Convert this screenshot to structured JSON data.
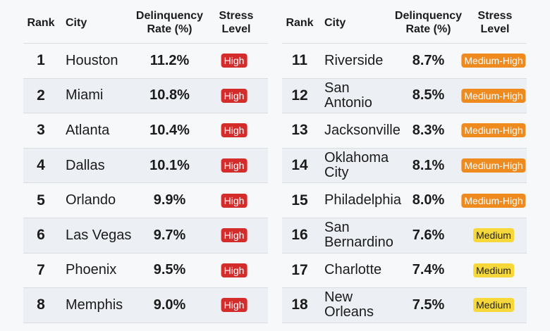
{
  "headers": {
    "rank": "Rank",
    "city": "City",
    "rate": "Delinquency Rate (%)",
    "stress": "Stress Level"
  },
  "colors": {
    "High": "#d42b2b",
    "Medium-High": "#ef8a1f",
    "Medium": "#f7d83a"
  },
  "tables": [
    {
      "rows": [
        {
          "rank": "1",
          "city": "Houston",
          "rate": "11.2%",
          "stress": "High"
        },
        {
          "rank": "2",
          "city": "Miami",
          "rate": "10.8%",
          "stress": "High"
        },
        {
          "rank": "3",
          "city": "Atlanta",
          "rate": "10.4%",
          "stress": "High"
        },
        {
          "rank": "4",
          "city": "Dallas",
          "rate": "10.1%",
          "stress": "High"
        },
        {
          "rank": "5",
          "city": "Orlando",
          "rate": "9.9%",
          "stress": "High"
        },
        {
          "rank": "6",
          "city": "Las Vegas",
          "rate": "9.7%",
          "stress": "High"
        },
        {
          "rank": "7",
          "city": "Phoenix",
          "rate": "9.5%",
          "stress": "High"
        },
        {
          "rank": "8",
          "city": "Memphis",
          "rate": "9.0%",
          "stress": "High"
        }
      ]
    },
    {
      "rows": [
        {
          "rank": "11",
          "city": "Riverside",
          "rate": "8.7%",
          "stress": "Medium-High"
        },
        {
          "rank": "12",
          "city": "San Antonio",
          "rate": "8.5%",
          "stress": "Medium-High"
        },
        {
          "rank": "13",
          "city": "Jacksonville",
          "rate": "8.3%",
          "stress": "Medium-High"
        },
        {
          "rank": "14",
          "city": "Oklahoma City",
          "rate": "8.1%",
          "stress": "Medium-High"
        },
        {
          "rank": "15",
          "city": "Philadelphia",
          "rate": "8.0%",
          "stress": "Medium-High"
        },
        {
          "rank": "16",
          "city": "San Bernardino",
          "rate": "7.6%",
          "stress": "Medium"
        },
        {
          "rank": "17",
          "city": "Charlotte",
          "rate": "7.4%",
          "stress": "Medium"
        },
        {
          "rank": "18",
          "city": "New Orleans",
          "rate": "7.5%",
          "stress": "Medium"
        }
      ]
    }
  ]
}
